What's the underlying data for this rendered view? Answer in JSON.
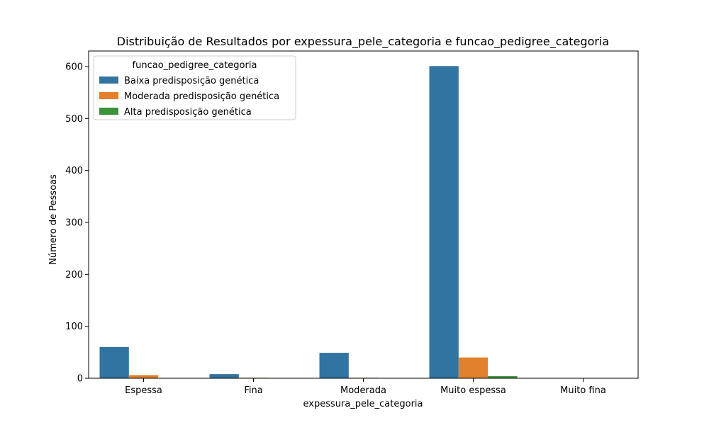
{
  "chart_data": {
    "type": "bar",
    "title": "Distribuição de Resultados por expessura_pele_categoria e funcao_pedigree_categoria",
    "xlabel": "expessura_pele_categoria",
    "ylabel": "Número de Pessoas",
    "categories": [
      "Espessa",
      "Fina",
      "Moderada",
      "Muito espessa",
      "Muito fina"
    ],
    "series": [
      {
        "name": "Baixa predisposição genética",
        "color": "#3274a1",
        "values": [
          60,
          8,
          49,
          601,
          0
        ]
      },
      {
        "name": "Moderada predisposição genética",
        "color": "#e1812c",
        "values": [
          6,
          1,
          1,
          40,
          0
        ]
      },
      {
        "name": "Alta predisposição genética",
        "color": "#3a923a",
        "values": [
          0,
          0,
          0,
          4,
          0
        ]
      }
    ],
    "ylim": [
      0,
      630
    ],
    "yticks": [
      0,
      100,
      200,
      300,
      400,
      500,
      600
    ],
    "legend": {
      "title": "funcao_pedigree_categoria",
      "position": "top-left"
    },
    "grid": false
  }
}
